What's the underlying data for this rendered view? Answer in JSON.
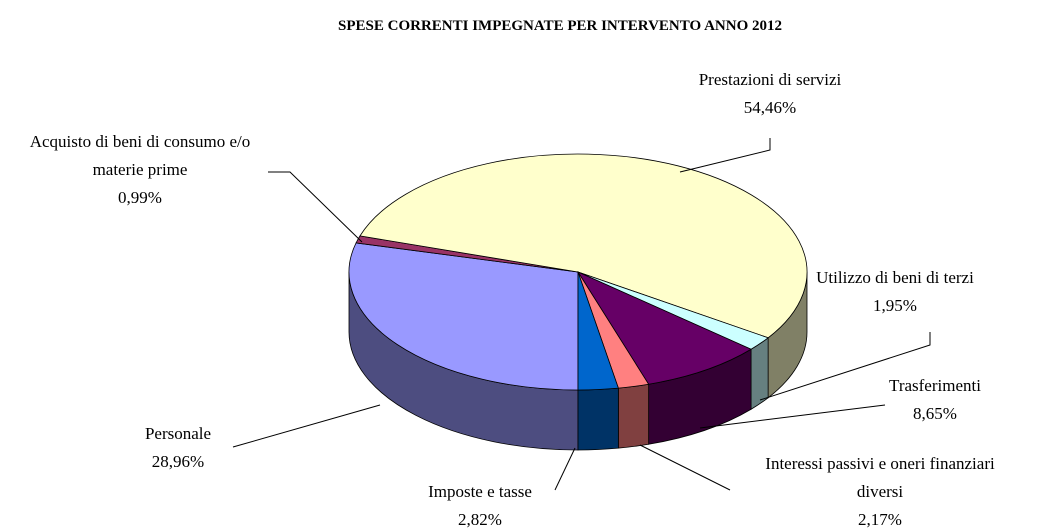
{
  "chart_data": {
    "type": "pie3d",
    "title": "SPESE CORRENTI IMPEGNATE PER INTERVENTO ANNO 2012",
    "categories": [
      "Personale",
      "Acquisto di beni di consumo e/o materie prime",
      "Prestazioni di servizi",
      "Utilizzo di beni di terzi",
      "Trasferimenti",
      "Interessi passivi e oneri finanziari diversi",
      "Imposte e tasse"
    ],
    "values": [
      28.96,
      0.99,
      54.46,
      1.95,
      8.65,
      2.17,
      2.82
    ],
    "value_labels": [
      "28,96%",
      "0,99%",
      "54,46%",
      "1,95%",
      "8,65%",
      "2,17%",
      "2,82%"
    ],
    "colors": [
      "#9999ff",
      "#993366",
      "#ffffcc",
      "#ccffff",
      "#660066",
      "#ff8080",
      "#0066cc"
    ]
  }
}
